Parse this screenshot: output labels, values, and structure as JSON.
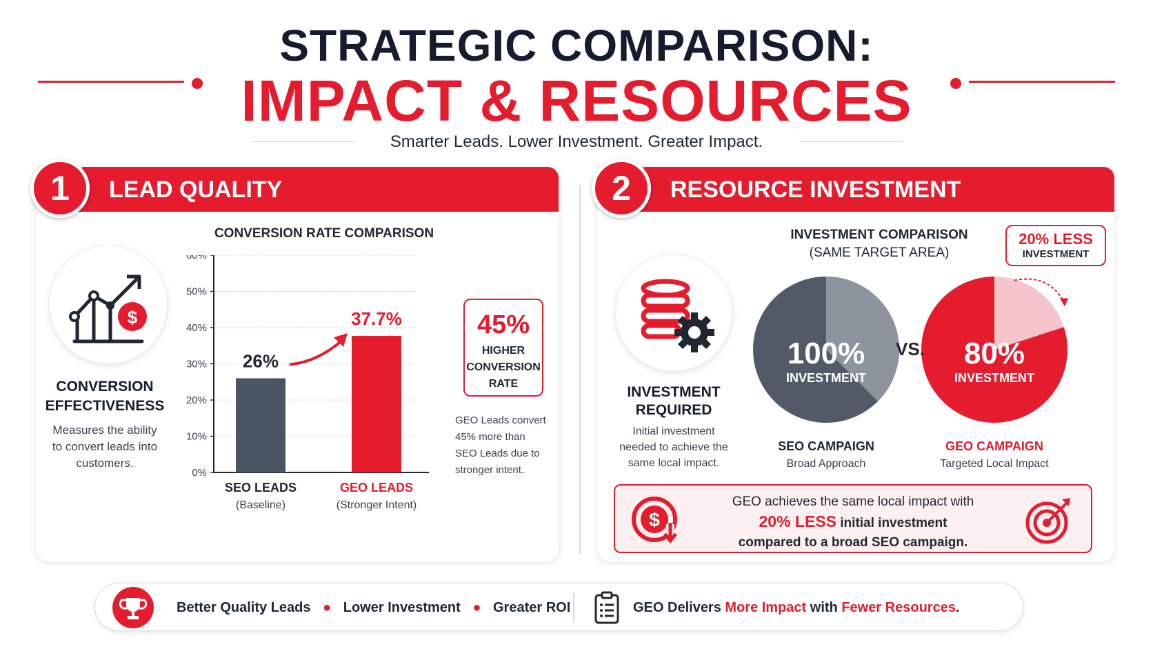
{
  "header": {
    "title_line1": "STRATEGIC COMPARISON:",
    "title_line2": "IMPACT & RESOURCES",
    "subtitle": "Smarter Leads. Lower Investment. Greater Impact."
  },
  "colors": {
    "accent": "#e51b2e",
    "dark": "#4a5563",
    "navy": "#141c2e",
    "pie_dark": "#515a66",
    "pie_light": "#8d949e",
    "pie_pink": "#f6c5cb"
  },
  "section1": {
    "number": "1",
    "title": "LEAD QUALITY",
    "icon": "chart-growth-dollar-icon",
    "metric_title_line1": "CONVERSION",
    "metric_title_line2": "EFFECTIVENESS",
    "metric_desc_line1": "Measures the ability",
    "metric_desc_line2": "to convert leads into",
    "metric_desc_line3": "customers.",
    "badge_value": "45%",
    "badge_line1": "HIGHER",
    "badge_line2": "CONVERSION",
    "badge_line3": "RATE",
    "note_line1": "GEO Leads convert",
    "note_line2": "45% more than",
    "note_line3": "SEO Leads due to",
    "note_line4": "stronger intent."
  },
  "section2": {
    "number": "2",
    "title": "RESOURCE INVESTMENT",
    "icon": "database-gear-icon",
    "metric_title_line1": "INVESTMENT",
    "metric_title_line2": "REQUIRED",
    "metric_desc_line1": "Initial investment",
    "metric_desc_line2": "needed to achieve the",
    "metric_desc_line3": "same local impact.",
    "callout_value": "20% LESS",
    "callout_label": "INVESTMENT",
    "vs_label": "VS.",
    "summary_line1": "GEO achieves the same local impact with",
    "summary_highlight": "20% LESS",
    "summary_line2_rest": "initial investment",
    "summary_line3": "compared to a broad SEO campaign."
  },
  "chart_data": [
    {
      "type": "bar",
      "title": "CONVERSION RATE COMPARISON",
      "categories": [
        "SEO LEADS",
        "GEO LEADS"
      ],
      "category_sublabels": [
        "(Baseline)",
        "(Stronger Intent)"
      ],
      "values": [
        26,
        37.7
      ],
      "value_labels": [
        "26%",
        "37.7%"
      ],
      "yticks": [
        "60%",
        "50%",
        "40%",
        "30%",
        "20%",
        "10%",
        "0%"
      ],
      "ylim": [
        0,
        60
      ],
      "grid": true
    },
    {
      "type": "pie",
      "title_line1": "INVESTMENT COMPARISON",
      "title_line2": "(SAME TARGET AREA)",
      "slices": [
        {
          "name": "SEO CAMPAIGN",
          "sublabel": "Broad Approach",
          "value": 100,
          "value_label": "100%",
          "center_label": "INVESTMENT"
        },
        {
          "name": "GEO CAMPAIGN",
          "sublabel": "Targeted Local Impact",
          "value": 80,
          "value_label": "80%",
          "center_label": "INVESTMENT"
        }
      ]
    }
  ],
  "bottom": {
    "item1": "Better Quality Leads",
    "item2": "Lower Investment",
    "item3": "Greater ROI",
    "text_prefix": "GEO Delivers ",
    "text_hl1": "More Impact",
    "text_mid": " with ",
    "text_hl2": "Fewer Resources",
    "text_suffix": "."
  }
}
